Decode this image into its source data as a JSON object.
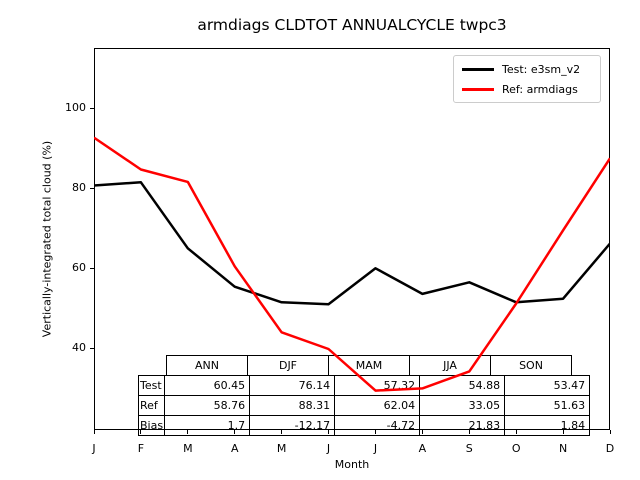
{
  "figure": {
    "title": "armdiags CLDTOT ANNUALCYCLE twpc3",
    "xlabel": "Month",
    "ylabel": "Vertically-integrated total cloud (%)"
  },
  "chart_data": {
    "type": "line",
    "title": "armdiags CLDTOT ANNUALCYCLE twpc3",
    "xlabel": "Month",
    "ylabel": "Vertically-integrated total cloud (%)",
    "categories": [
      "J",
      "F",
      "M",
      "A",
      "M",
      "J",
      "J",
      "A",
      "S",
      "O",
      "N",
      "D"
    ],
    "series": [
      {
        "name": "Test: e3sm_v2",
        "color": "#000000",
        "values": [
          80.7,
          81.5,
          65.0,
          55.4,
          51.5,
          51.0,
          60.0,
          53.6,
          56.5,
          51.5,
          52.4,
          66.2
        ]
      },
      {
        "name": "Ref: armdiags",
        "color": "#ff0000",
        "values": [
          92.7,
          84.7,
          81.6,
          60.5,
          44.0,
          39.8,
          29.4,
          29.95,
          34.2,
          51.2,
          69.5,
          87.5
        ]
      }
    ],
    "yticks": [
      40,
      60,
      80,
      100
    ],
    "ylim": [
      19.8,
      115.1
    ],
    "legend_position": "upper right",
    "grid": false
  },
  "table": {
    "columns": [
      "ANN",
      "DJF",
      "MAM",
      "JJA",
      "SON"
    ],
    "rows": [
      {
        "label": "Test",
        "values": [
          "60.45",
          "76.14",
          "57.32",
          "54.88",
          "53.47"
        ]
      },
      {
        "label": "Ref",
        "values": [
          "58.76",
          "88.31",
          "62.04",
          "33.05",
          "51.63"
        ]
      },
      {
        "label": "Bias",
        "values": [
          "1.7",
          "-12.17",
          "-4.72",
          "21.83",
          "1.84"
        ]
      }
    ]
  }
}
